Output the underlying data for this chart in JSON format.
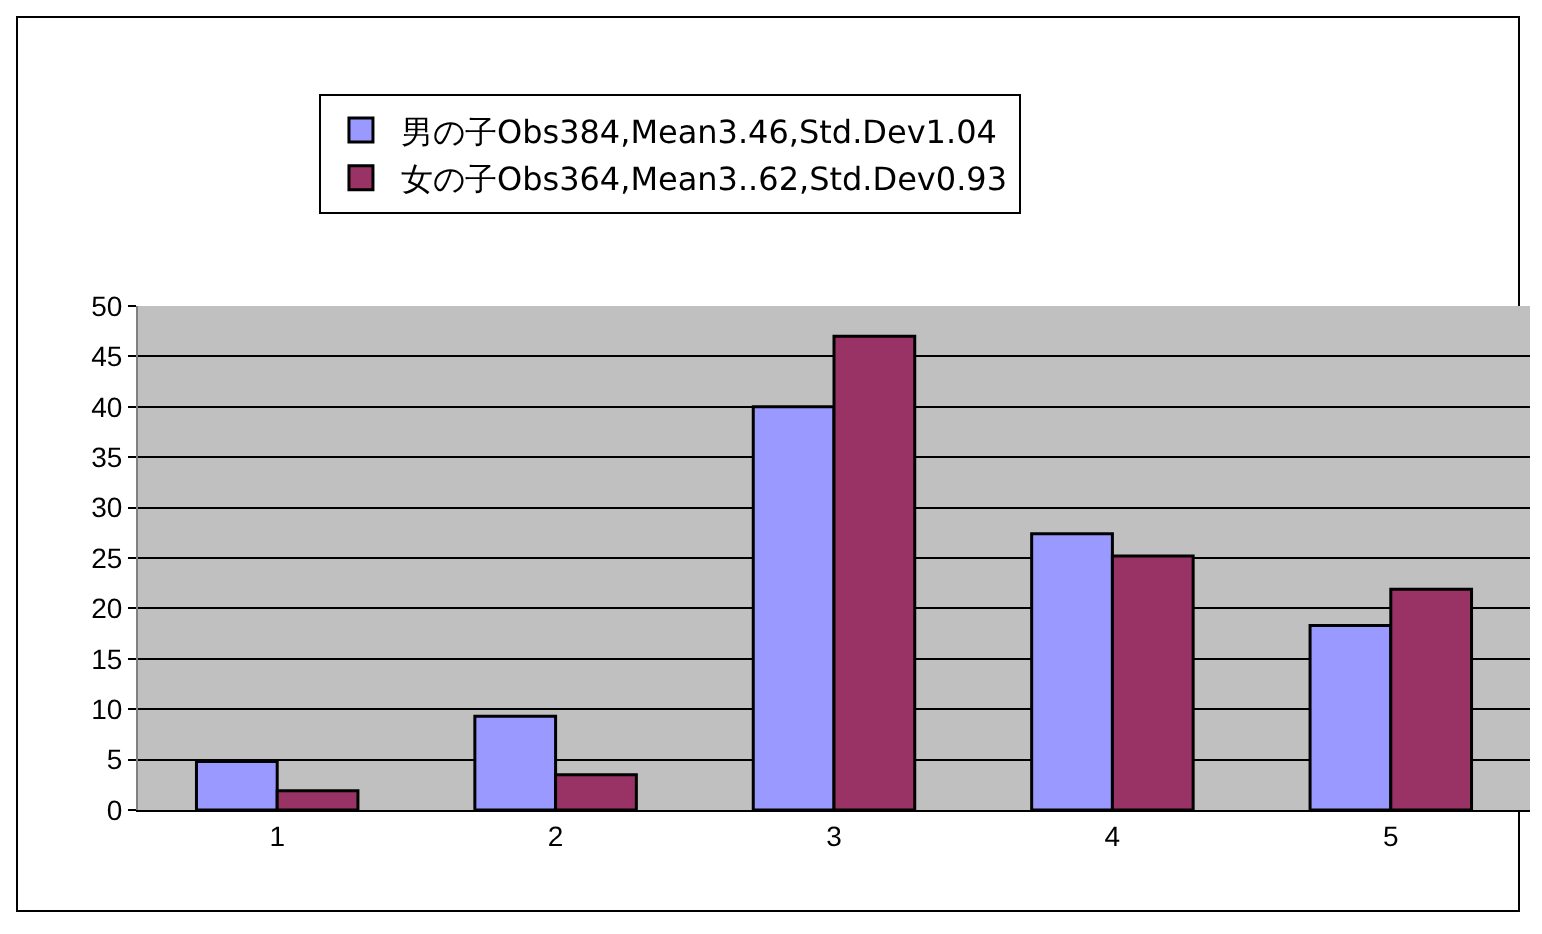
{
  "chart_data": {
    "type": "bar",
    "categories": [
      "1",
      "2",
      "3",
      "4",
      "5"
    ],
    "series": [
      {
        "name": "男の子Obs384,Mean3.46,Std.Dev1.04",
        "color": "#9999ff",
        "values": [
          4.8,
          9.3,
          40,
          27.4,
          18.3
        ]
      },
      {
        "name": "女の子Obs364,Mean3..62,Std.Dev0.93",
        "color": "#993366",
        "values": [
          1.9,
          3.5,
          47,
          25.2,
          21.9
        ]
      }
    ],
    "ylim": [
      0,
      50
    ],
    "yticks": [
      0,
      5,
      10,
      15,
      20,
      25,
      30,
      35,
      40,
      45,
      50
    ],
    "grid": "y",
    "legend": "top"
  }
}
